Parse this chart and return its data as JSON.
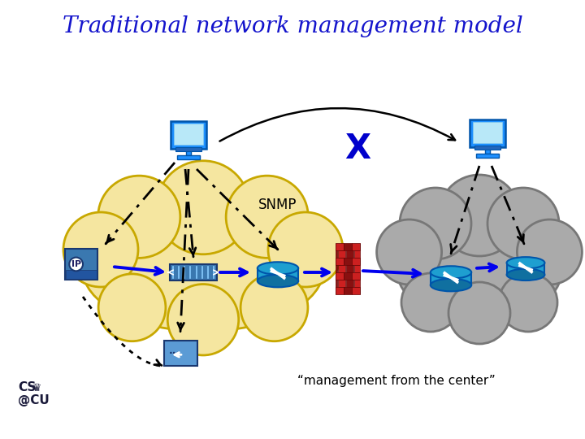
{
  "title": "Traditional network management model",
  "title_color": "#1414CC",
  "title_fontsize": 20,
  "snmp_label": "SNMP",
  "mgmt_label": "“management from the center”",
  "x_label": "X",
  "bg_color": "#ffffff",
  "yellow_cloud_color": "#F5E6A0",
  "yellow_cloud_edge": "#C8A800",
  "gray_cloud_color": "#AAAAAA",
  "gray_cloud_edge": "#777777",
  "arrow_blue": "#0000EE",
  "x_mark_color": "#0000CC",
  "firewall_red": "#CC2020",
  "firewall_dark": "#881010",
  "router_top": "#1E9FD0",
  "router_bot": "#1070A0",
  "switch_fc": "#4682B4",
  "phone_fc": "#4682B4",
  "computer_fc": "#1E90FF",
  "computer_screen": "#B8E8F8",
  "gateway_fc": "#5B9BD5"
}
